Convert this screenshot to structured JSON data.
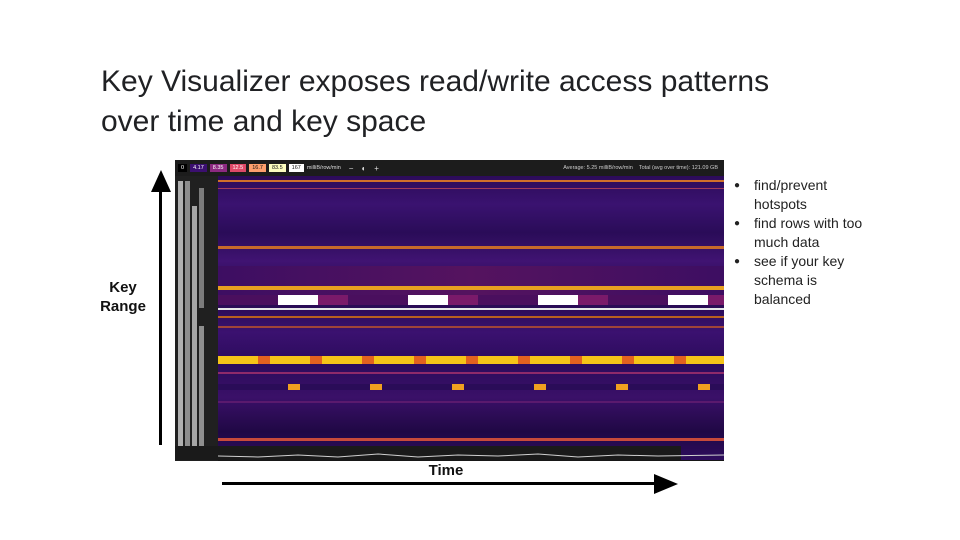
{
  "slide": {
    "title_line1": "Key Visualizer exposes read/write access patterns",
    "title_line2": "over time and key space"
  },
  "axes": {
    "vertical_label_line1": "Key",
    "vertical_label_line2": "Range",
    "horizontal_label": "Time"
  },
  "visualizer": {
    "legend": [
      {
        "label": "0",
        "color": "#000000"
      },
      {
        "label": "4.17",
        "color": "#3b0f70"
      },
      {
        "label": "8.35",
        "color": "#8c2981"
      },
      {
        "label": "12.5",
        "color": "#de4968"
      },
      {
        "label": "16.7",
        "color": "#fe9f6d"
      },
      {
        "label": "83.5",
        "color": "#fcfdbf"
      },
      {
        "label": "167",
        "color": "#ffffff"
      }
    ],
    "unit": "milliB/row/min",
    "zoom_out": "−",
    "toggle": "◐",
    "zoom_in": "+",
    "average_text": "Average: 5.25 milliB/row/min",
    "total_text": "Total (avg over time): 121.09 GB"
  },
  "bullets": [
    "find/prevent hotspots",
    "find rows with too much data",
    "see if your key schema is balanced"
  ]
}
